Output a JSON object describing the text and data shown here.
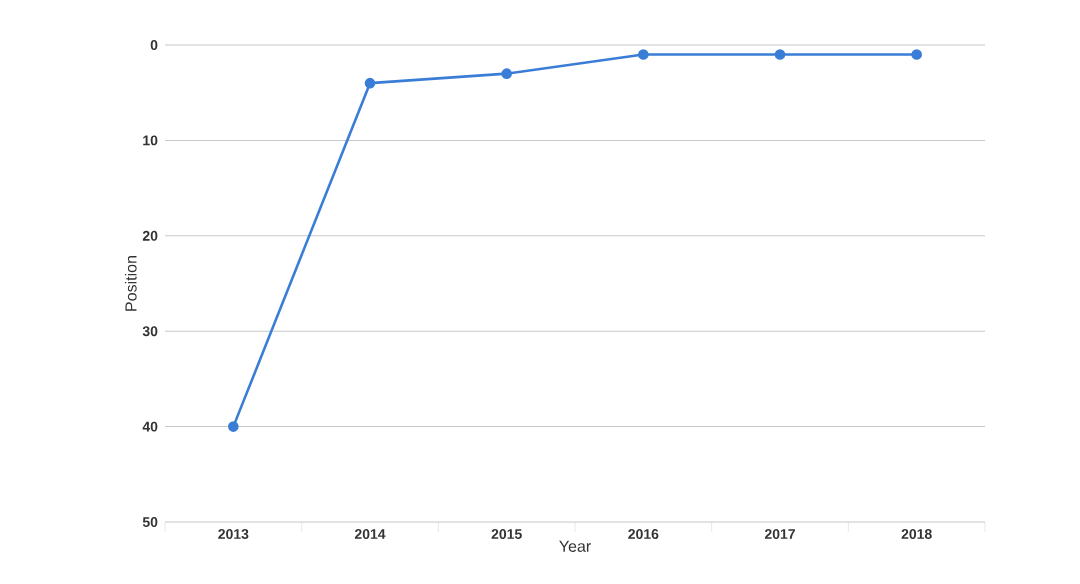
{
  "chart_data": {
    "type": "line",
    "xlabel": "Year",
    "ylabel": "Position",
    "categories": [
      "2013",
      "2014",
      "2015",
      "2016",
      "2017",
      "2018"
    ],
    "series": [
      {
        "color": "#3a7dd6",
        "values": [
          40,
          4,
          3,
          1,
          1,
          1
        ]
      }
    ],
    "ylim": [
      50,
      0
    ],
    "yticks": [
      0,
      10,
      20,
      30,
      40,
      50
    ],
    "grid": "y",
    "marker": "circle",
    "line_style": "solid"
  }
}
